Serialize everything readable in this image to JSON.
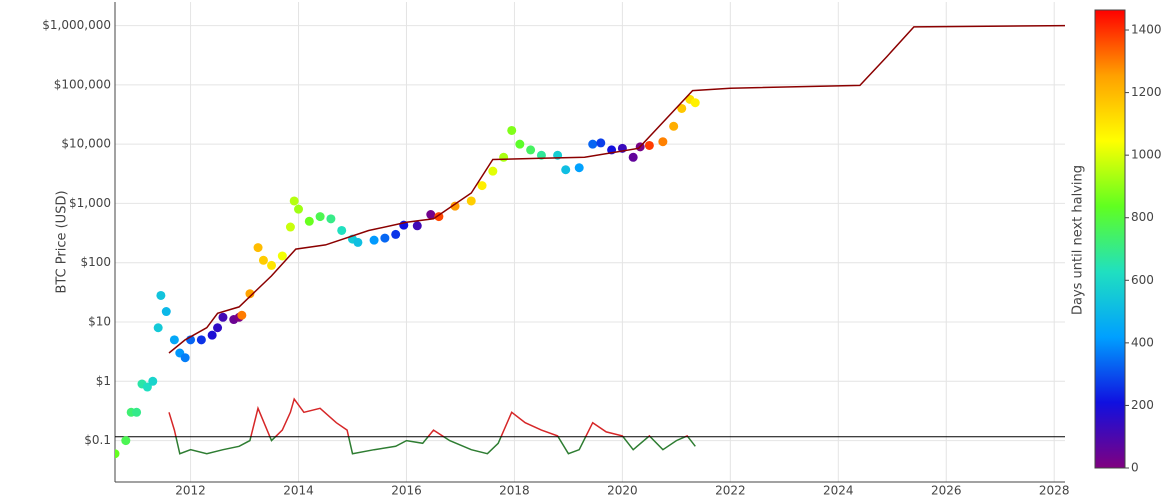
{
  "chart_data": {
    "type": "scatter",
    "y_label": "BTC Price (USD)",
    "colorbar_label": "Days until next halving",
    "log_y": true,
    "grid": true,
    "xlim": [
      2010.6,
      2028.2
    ],
    "xticks": [
      2012,
      2014,
      2016,
      2018,
      2020,
      2022,
      2024,
      2026,
      2028
    ],
    "ylim": [
      0.02,
      2500000
    ],
    "yticks": [
      {
        "value": 0.1,
        "label": "$0.1"
      },
      {
        "value": 1,
        "label": "$1"
      },
      {
        "value": 10,
        "label": "$10"
      },
      {
        "value": 100,
        "label": "$100"
      },
      {
        "value": 1000,
        "label": "$1,000"
      },
      {
        "value": 10000,
        "label": "$10,000"
      },
      {
        "value": 100000,
        "label": "$100,000"
      },
      {
        "value": 1000000,
        "label": "$1,000,000"
      }
    ],
    "colorscale": [
      "#800080",
      "#1010e0",
      "#00a0ff",
      "#20e0c0",
      "#60ff20",
      "#ffff00",
      "#ffa000",
      "#ff0000"
    ],
    "clim": [
      0,
      1464
    ],
    "cticks": [
      0,
      200,
      400,
      600,
      800,
      1000,
      1200,
      1400
    ],
    "x": [
      2010.6,
      2010.8,
      2010.9,
      2011.0,
      2011.1,
      2011.2,
      2011.3,
      2011.4,
      2011.45,
      2011.55,
      2011.7,
      2011.8,
      2011.9,
      2012.0,
      2012.2,
      2012.4,
      2012.5,
      2012.6,
      2012.8,
      2012.9,
      2012.95,
      2013.1,
      2013.25,
      2013.35,
      2013.5,
      2013.7,
      2013.85,
      2013.92,
      2014.0,
      2014.2,
      2014.4,
      2014.6,
      2014.8,
      2015.0,
      2015.1,
      2015.4,
      2015.6,
      2015.8,
      2015.95,
      2016.2,
      2016.45,
      2016.6,
      2016.9,
      2017.2,
      2017.4,
      2017.6,
      2017.8,
      2017.95,
      2018.1,
      2018.3,
      2018.5,
      2018.8,
      2018.95,
      2019.2,
      2019.45,
      2019.6,
      2019.8,
      2020.0,
      2020.2,
      2020.33,
      2020.5,
      2020.75,
      2020.95,
      2021.1,
      2021.25,
      2021.35
    ],
    "values": [
      0.06,
      0.1,
      0.3,
      0.3,
      0.9,
      0.8,
      1,
      8,
      28,
      15,
      5,
      3,
      2.5,
      5,
      5,
      6,
      8,
      12,
      11,
      12,
      13,
      30,
      180,
      110,
      90,
      130,
      400,
      1100,
      800,
      500,
      600,
      550,
      350,
      250,
      220,
      240,
      260,
      300,
      430,
      420,
      650,
      600,
      900,
      1100,
      2000,
      3500,
      6000,
      17000,
      10000,
      8000,
      6500,
      6500,
      3700,
      4000,
      10000,
      10500,
      8000,
      8500,
      6000,
      9000,
      9500,
      11000,
      20000,
      40000,
      57000,
      50000
    ],
    "color_values": [
      843,
      770,
      730,
      697,
      660,
      624,
      588,
      551,
      533,
      496,
      442,
      405,
      369,
      332,
      259,
      186,
      150,
      113,
      40,
      4,
      1303,
      1248,
      1193,
      1157,
      1102,
      1030,
      975,
      949,
      920,
      847,
      774,
      701,
      628,
      555,
      518,
      409,
      336,
      263,
      208,
      117,
      26,
      1372,
      1263,
      1153,
      1080,
      1007,
      934,
      880,
      825,
      752,
      679,
      569,
      515,
      423,
      332,
      277,
      204,
      131,
      58,
      11,
      1387,
      1296,
      1223,
      1168,
      1114,
      1077
    ],
    "model": {
      "color": "#8b0000",
      "x": [
        2011.6,
        2011.9,
        2012.3,
        2012.5,
        2012.9,
        2013.5,
        2013.95,
        2014.5,
        2015.3,
        2016.0,
        2016.5,
        2017.2,
        2017.6,
        2018.5,
        2019.3,
        2020.3,
        2021.3,
        2022.0,
        2024.4,
        2024.9,
        2025.4,
        2028.3
      ],
      "values": [
        3,
        5,
        8,
        14,
        18,
        60,
        170,
        200,
        350,
        480,
        550,
        1500,
        5500,
        5800,
        6000,
        8500,
        80000,
        88000,
        98000,
        300000,
        950000,
        1000000
      ]
    },
    "reference_line": {
      "value": 0.116,
      "color": "#000000"
    },
    "ratio": {
      "color_above": "#d62728",
      "color_below": "#2e7d32",
      "x": [
        2011.6,
        2011.7,
        2011.8,
        2012.0,
        2012.3,
        2012.6,
        2012.9,
        2013.1,
        2013.25,
        2013.5,
        2013.7,
        2013.85,
        2013.92,
        2014.1,
        2014.4,
        2014.7,
        2014.9,
        2015.0,
        2015.4,
        2015.8,
        2016.0,
        2016.3,
        2016.5,
        2016.8,
        2017.2,
        2017.5,
        2017.7,
        2017.95,
        2018.2,
        2018.5,
        2018.8,
        2019.0,
        2019.2,
        2019.45,
        2019.7,
        2020.0,
        2020.2,
        2020.5,
        2020.75,
        2021.0,
        2021.2,
        2021.35
      ],
      "values": [
        0.3,
        0.15,
        0.06,
        0.07,
        0.06,
        0.07,
        0.08,
        0.1,
        0.35,
        0.1,
        0.15,
        0.3,
        0.5,
        0.3,
        0.35,
        0.2,
        0.15,
        0.06,
        0.07,
        0.08,
        0.1,
        0.09,
        0.15,
        0.1,
        0.07,
        0.06,
        0.09,
        0.3,
        0.2,
        0.15,
        0.12,
        0.06,
        0.07,
        0.2,
        0.14,
        0.12,
        0.07,
        0.12,
        0.07,
        0.1,
        0.12,
        0.08
      ]
    }
  }
}
